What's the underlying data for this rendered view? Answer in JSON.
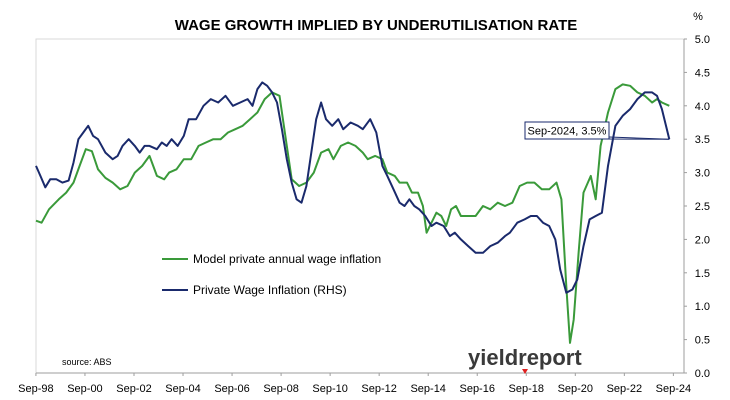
{
  "chart_data": {
    "type": "line",
    "title": "WAGE GROWTH IMPLIED BY UNDERUTILISATION RATE",
    "y_unit": "%",
    "ylim": [
      0.0,
      5.0
    ],
    "yticks": [
      "0.0",
      "0.5",
      "1.0",
      "1.5",
      "2.0",
      "2.5",
      "3.0",
      "3.5",
      "4.0",
      "4.5",
      "5.0"
    ],
    "x_ticks": [
      "Sep-98",
      "Sep-00",
      "Sep-02",
      "Sep-04",
      "Sep-06",
      "Sep-08",
      "Sep-10",
      "Sep-12",
      "Sep-14",
      "Sep-16",
      "Sep-18",
      "Sep-20",
      "Sep-22",
      "Sep-24"
    ],
    "xlim": [
      1998.67,
      2025.1
    ],
    "grid": false,
    "legend_position": "center-left",
    "series": [
      {
        "name": "Model private annual wage inflation",
        "color": "#3a9a3a",
        "points": [
          [
            1998.67,
            2.28
          ],
          [
            1998.9,
            2.25
          ],
          [
            1999.2,
            2.45
          ],
          [
            1999.6,
            2.6
          ],
          [
            1999.9,
            2.7
          ],
          [
            2000.2,
            2.85
          ],
          [
            2000.45,
            3.1
          ],
          [
            2000.7,
            3.35
          ],
          [
            2000.95,
            3.32
          ],
          [
            2001.2,
            3.05
          ],
          [
            2001.5,
            2.92
          ],
          [
            2001.8,
            2.85
          ],
          [
            2002.1,
            2.75
          ],
          [
            2002.4,
            2.8
          ],
          [
            2002.7,
            3.0
          ],
          [
            2003.0,
            3.1
          ],
          [
            2003.3,
            3.25
          ],
          [
            2003.6,
            2.95
          ],
          [
            2003.9,
            2.9
          ],
          [
            2004.1,
            3.0
          ],
          [
            2004.4,
            3.05
          ],
          [
            2004.7,
            3.2
          ],
          [
            2005.0,
            3.2
          ],
          [
            2005.3,
            3.4
          ],
          [
            2005.6,
            3.45
          ],
          [
            2005.9,
            3.5
          ],
          [
            2006.2,
            3.5
          ],
          [
            2006.5,
            3.6
          ],
          [
            2006.8,
            3.65
          ],
          [
            2007.1,
            3.7
          ],
          [
            2007.4,
            3.8
          ],
          [
            2007.7,
            3.9
          ],
          [
            2008.0,
            4.1
          ],
          [
            2008.3,
            4.2
          ],
          [
            2008.6,
            4.15
          ],
          [
            2008.9,
            3.4
          ],
          [
            2009.1,
            2.9
          ],
          [
            2009.4,
            2.8
          ],
          [
            2009.7,
            2.85
          ],
          [
            2010.0,
            3.0
          ],
          [
            2010.3,
            3.3
          ],
          [
            2010.6,
            3.35
          ],
          [
            2010.8,
            3.2
          ],
          [
            2011.1,
            3.4
          ],
          [
            2011.4,
            3.45
          ],
          [
            2011.7,
            3.4
          ],
          [
            2012.0,
            3.3
          ],
          [
            2012.2,
            3.2
          ],
          [
            2012.5,
            3.25
          ],
          [
            2012.8,
            3.2
          ],
          [
            2013.0,
            3.0
          ],
          [
            2013.3,
            2.95
          ],
          [
            2013.5,
            2.85
          ],
          [
            2013.8,
            2.85
          ],
          [
            2014.0,
            2.7
          ],
          [
            2014.25,
            2.7
          ],
          [
            2014.45,
            2.5
          ],
          [
            2014.6,
            2.1
          ],
          [
            2014.8,
            2.25
          ],
          [
            2015.0,
            2.4
          ],
          [
            2015.2,
            2.35
          ],
          [
            2015.4,
            2.2
          ],
          [
            2015.6,
            2.45
          ],
          [
            2015.8,
            2.5
          ],
          [
            2016.0,
            2.35
          ],
          [
            2016.3,
            2.35
          ],
          [
            2016.6,
            2.35
          ],
          [
            2016.9,
            2.5
          ],
          [
            2017.2,
            2.45
          ],
          [
            2017.5,
            2.55
          ],
          [
            2017.8,
            2.5
          ],
          [
            2018.1,
            2.55
          ],
          [
            2018.4,
            2.8
          ],
          [
            2018.7,
            2.85
          ],
          [
            2019.0,
            2.85
          ],
          [
            2019.3,
            2.75
          ],
          [
            2019.6,
            2.75
          ],
          [
            2019.9,
            2.85
          ],
          [
            2020.1,
            2.6
          ],
          [
            2020.3,
            1.3
          ],
          [
            2020.45,
            0.45
          ],
          [
            2020.6,
            0.8
          ],
          [
            2020.8,
            1.8
          ],
          [
            2021.0,
            2.7
          ],
          [
            2021.3,
            2.95
          ],
          [
            2021.5,
            2.6
          ],
          [
            2021.7,
            3.4
          ],
          [
            2022.0,
            3.9
          ],
          [
            2022.3,
            4.25
          ],
          [
            2022.6,
            4.32
          ],
          [
            2022.9,
            4.3
          ],
          [
            2023.2,
            4.2
          ],
          [
            2023.5,
            4.15
          ],
          [
            2023.8,
            4.05
          ],
          [
            2024.0,
            4.1
          ],
          [
            2024.2,
            4.05
          ],
          [
            2024.5,
            4.0
          ]
        ]
      },
      {
        "name": "Private Wage Inflation (RHS)",
        "color": "#1a2a6c",
        "points": [
          [
            1998.67,
            3.1
          ],
          [
            1998.85,
            2.95
          ],
          [
            1999.05,
            2.78
          ],
          [
            1999.25,
            2.9
          ],
          [
            1999.5,
            2.9
          ],
          [
            1999.75,
            2.85
          ],
          [
            2000.0,
            2.88
          ],
          [
            2000.2,
            3.15
          ],
          [
            2000.4,
            3.5
          ],
          [
            2000.6,
            3.6
          ],
          [
            2000.8,
            3.7
          ],
          [
            2001.0,
            3.55
          ],
          [
            2001.2,
            3.5
          ],
          [
            2001.5,
            3.3
          ],
          [
            2001.8,
            3.2
          ],
          [
            2002.0,
            3.25
          ],
          [
            2002.2,
            3.4
          ],
          [
            2002.45,
            3.5
          ],
          [
            2002.7,
            3.4
          ],
          [
            2002.9,
            3.3
          ],
          [
            2003.1,
            3.4
          ],
          [
            2003.3,
            3.4
          ],
          [
            2003.6,
            3.35
          ],
          [
            2003.8,
            3.45
          ],
          [
            2004.0,
            3.4
          ],
          [
            2004.2,
            3.5
          ],
          [
            2004.45,
            3.4
          ],
          [
            2004.7,
            3.55
          ],
          [
            2004.9,
            3.8
          ],
          [
            2005.2,
            3.8
          ],
          [
            2005.5,
            4.0
          ],
          [
            2005.8,
            4.1
          ],
          [
            2006.1,
            4.05
          ],
          [
            2006.4,
            4.15
          ],
          [
            2006.7,
            4.0
          ],
          [
            2007.0,
            4.05
          ],
          [
            2007.3,
            4.1
          ],
          [
            2007.5,
            4.0
          ],
          [
            2007.7,
            4.25
          ],
          [
            2007.9,
            4.35
          ],
          [
            2008.1,
            4.3
          ],
          [
            2008.3,
            4.2
          ],
          [
            2008.5,
            4.05
          ],
          [
            2008.7,
            3.65
          ],
          [
            2008.9,
            3.2
          ],
          [
            2009.1,
            2.85
          ],
          [
            2009.3,
            2.6
          ],
          [
            2009.5,
            2.55
          ],
          [
            2009.7,
            2.8
          ],
          [
            2009.9,
            3.3
          ],
          [
            2010.1,
            3.8
          ],
          [
            2010.3,
            4.05
          ],
          [
            2010.5,
            3.8
          ],
          [
            2010.75,
            3.7
          ],
          [
            2011.0,
            3.8
          ],
          [
            2011.2,
            3.65
          ],
          [
            2011.5,
            3.75
          ],
          [
            2011.8,
            3.7
          ],
          [
            2012.0,
            3.65
          ],
          [
            2012.3,
            3.8
          ],
          [
            2012.55,
            3.6
          ],
          [
            2012.8,
            3.1
          ],
          [
            2013.0,
            2.95
          ],
          [
            2013.25,
            2.75
          ],
          [
            2013.5,
            2.55
          ],
          [
            2013.7,
            2.5
          ],
          [
            2013.9,
            2.6
          ],
          [
            2014.1,
            2.5
          ],
          [
            2014.3,
            2.45
          ],
          [
            2014.55,
            2.35
          ],
          [
            2014.8,
            2.2
          ],
          [
            2015.0,
            2.25
          ],
          [
            2015.3,
            2.2
          ],
          [
            2015.55,
            2.05
          ],
          [
            2015.75,
            2.1
          ],
          [
            2016.0,
            2.0
          ],
          [
            2016.3,
            1.9
          ],
          [
            2016.6,
            1.8
          ],
          [
            2016.9,
            1.8
          ],
          [
            2017.2,
            1.9
          ],
          [
            2017.5,
            1.95
          ],
          [
            2017.8,
            2.05
          ],
          [
            2018.0,
            2.1
          ],
          [
            2018.3,
            2.25
          ],
          [
            2018.6,
            2.3
          ],
          [
            2018.85,
            2.35
          ],
          [
            2019.1,
            2.35
          ],
          [
            2019.35,
            2.25
          ],
          [
            2019.6,
            2.2
          ],
          [
            2019.85,
            2.0
          ],
          [
            2020.05,
            1.55
          ],
          [
            2020.3,
            1.2
          ],
          [
            2020.55,
            1.25
          ],
          [
            2020.75,
            1.4
          ],
          [
            2021.0,
            1.9
          ],
          [
            2021.25,
            2.3
          ],
          [
            2021.5,
            2.35
          ],
          [
            2021.75,
            2.4
          ],
          [
            2022.0,
            3.1
          ],
          [
            2022.3,
            3.7
          ],
          [
            2022.6,
            3.85
          ],
          [
            2022.9,
            3.95
          ],
          [
            2023.2,
            4.1
          ],
          [
            2023.5,
            4.2
          ],
          [
            2023.8,
            4.2
          ],
          [
            2024.0,
            4.15
          ],
          [
            2024.2,
            3.95
          ],
          [
            2024.5,
            3.5
          ]
        ]
      }
    ],
    "annotation": {
      "label": "Sep-2024, 3.5%",
      "x": 2024.5,
      "y": 3.5
    },
    "source_note": "source: ABS",
    "logo_text": "yieldreport"
  }
}
